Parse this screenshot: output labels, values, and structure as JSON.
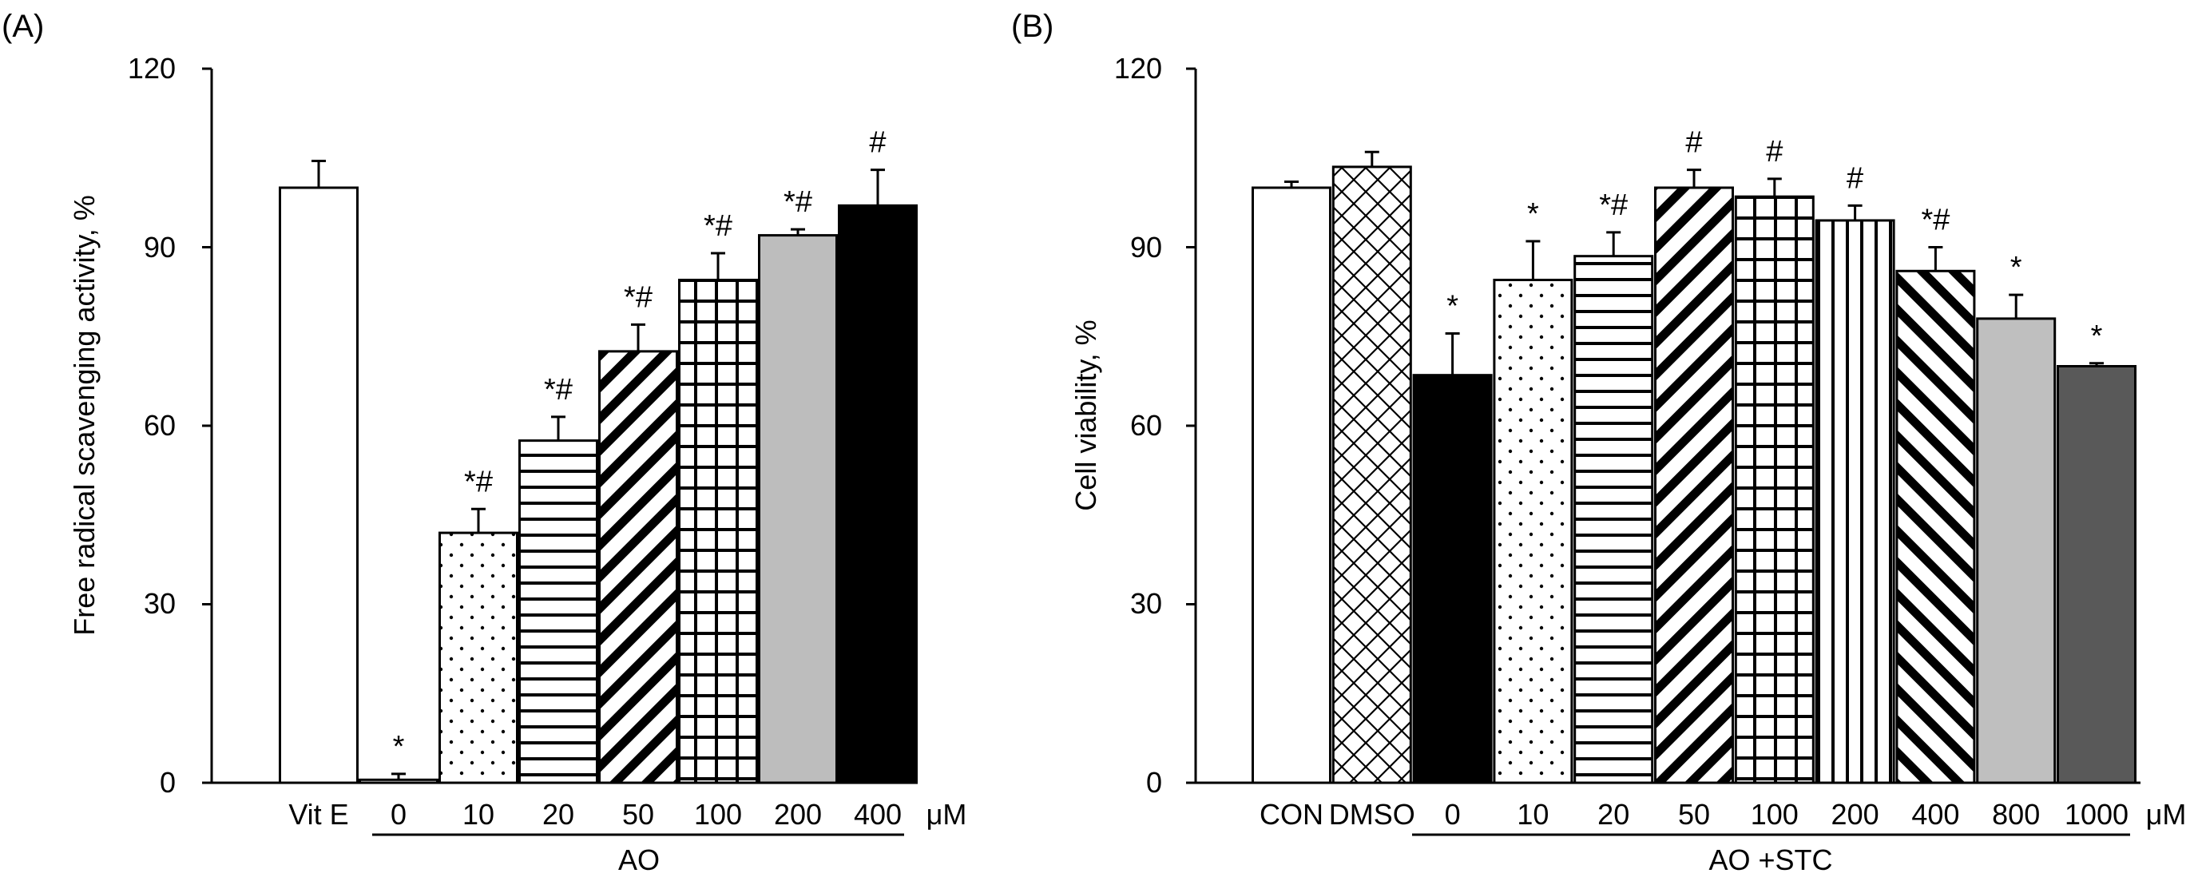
{
  "chart_data": [
    {
      "type": "bar",
      "panel_label": "(A)",
      "ylabel": "Free radical scavenging activity, %",
      "ylim": [
        0,
        120
      ],
      "yticks": [
        "0",
        "30",
        "60",
        "90",
        "120"
      ],
      "unit_label": "μM",
      "group_label": "AO",
      "categories": [
        "Vit E",
        "0",
        "10",
        "20",
        "50",
        "100",
        "200",
        "400"
      ],
      "values": [
        100,
        0.5,
        42,
        57.5,
        72.5,
        84.5,
        92,
        97
      ],
      "errors": [
        4.5,
        1,
        4,
        4,
        4.5,
        4.5,
        1,
        6
      ],
      "significance": [
        "",
        "*",
        "*#",
        "*#",
        "*#",
        "*#",
        "*#",
        "#"
      ],
      "patterns": [
        "white",
        "white",
        "dots",
        "hlines",
        "diag-up",
        "grid",
        "gray",
        "black"
      ]
    },
    {
      "type": "bar",
      "panel_label": "(B)",
      "ylabel": "Cell viability, %",
      "ylim": [
        0,
        120
      ],
      "yticks": [
        "0",
        "30",
        "60",
        "90",
        "120"
      ],
      "unit_label": "μM",
      "group_label": "AO +STC",
      "categories": [
        "CON",
        "DMSO",
        "0",
        "10",
        "20",
        "50",
        "100",
        "200",
        "400",
        "800",
        "1000"
      ],
      "values": [
        100,
        103.5,
        68.5,
        84.5,
        88.5,
        100,
        98.5,
        94.5,
        86,
        78,
        70
      ],
      "errors": [
        1,
        2.5,
        7,
        6.5,
        4,
        3,
        3,
        2.5,
        4,
        4,
        0.5
      ],
      "significance": [
        "",
        "",
        "*",
        "*",
        "*#",
        "#",
        "#",
        "#",
        "*#",
        "*",
        "*"
      ],
      "patterns": [
        "white",
        "crosshatch",
        "black",
        "dots",
        "hlines",
        "diag-up",
        "grid",
        "vlines",
        "diag-down",
        "lightgray",
        "darkgray"
      ]
    }
  ]
}
